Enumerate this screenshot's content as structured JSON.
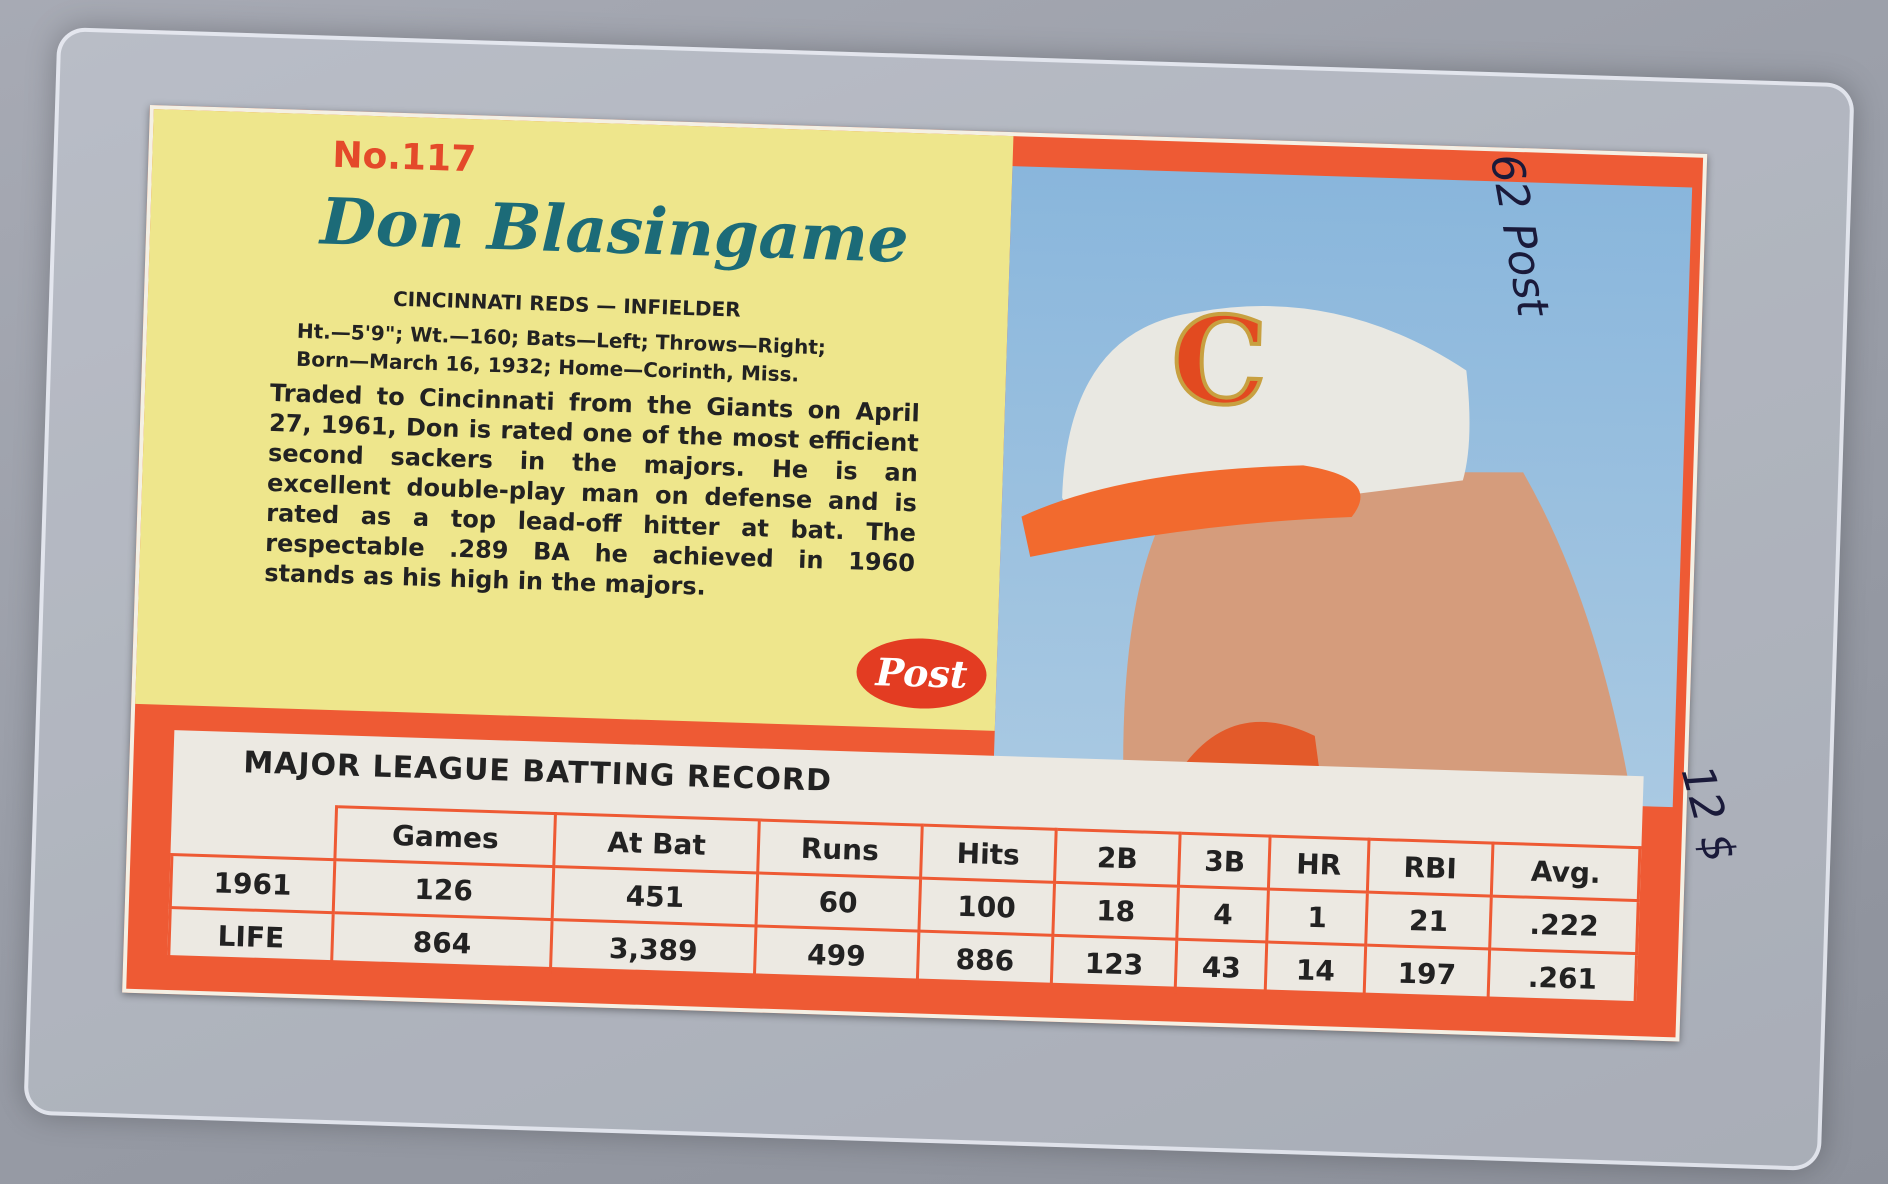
{
  "card": {
    "number": "No.117",
    "player_name": "Don Blasingame",
    "team_position": "CINCINNATI REDS — INFIELDER",
    "bio": [
      "Ht.—5'9\"; Wt.—160; Bats—Left; Throws—Right;",
      "Born—March 16, 1932; Home—Corinth, Miss."
    ],
    "description": "Traded to Cincinnati from the Giants on April 27, 1961, Don is rated one of the most efficient second sackers in the majors. He is an excellent double-play man on defense and is rated as a top lead-off hitter at bat. The respectable .289 BA he achieved in 1960 stands as his high in the majors.",
    "logo": "Post",
    "cap_logo": "C",
    "record": {
      "title": "MAJOR LEAGUE BATTING RECORD",
      "headers": [
        "Games",
        "At Bat",
        "Runs",
        "Hits",
        "2B",
        "3B",
        "HR",
        "RBI",
        "Avg."
      ],
      "rows": [
        [
          "1961",
          "126",
          "451",
          "60",
          "100",
          "18",
          "4",
          "1",
          "21",
          ".222"
        ],
        [
          "LIFE",
          "864",
          "3,389",
          "499",
          "886",
          "123",
          "43",
          "14",
          "197",
          ".261"
        ]
      ]
    }
  },
  "notes": [
    "62 Post",
    "12 $"
  ]
}
